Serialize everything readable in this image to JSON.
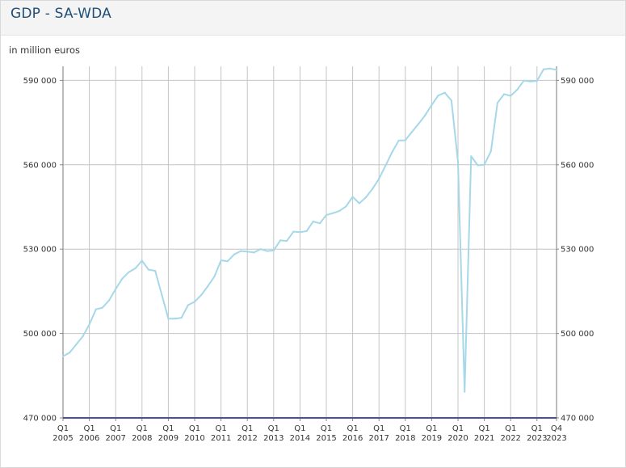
{
  "header": {
    "title": "GDP - SA-WDA"
  },
  "unit_label": "in million euros",
  "colors": {
    "line": "#a6d8ea",
    "grid": "#c4c4c4",
    "axis": "#4b4f8a",
    "title": "#1f4e79"
  },
  "chart_data": {
    "type": "line",
    "title": "GDP - SA-WDA",
    "ylabel": "in million euros",
    "xlabel": "",
    "ylim": [
      470000,
      595000
    ],
    "yticks": [
      470000,
      500000,
      530000,
      560000,
      590000
    ],
    "ytick_labels": [
      "470 000",
      "500 000",
      "530 000",
      "560 000",
      "590 000"
    ],
    "y_axis_right_mirrored": true,
    "grid": true,
    "x_tick_labels": [
      {
        "q": "Q1",
        "year": "2005"
      },
      {
        "q": "Q1",
        "year": "2006"
      },
      {
        "q": "Q1",
        "year": "2007"
      },
      {
        "q": "Q1",
        "year": "2008"
      },
      {
        "q": "Q1",
        "year": "2009"
      },
      {
        "q": "Q1",
        "year": "2010"
      },
      {
        "q": "Q1",
        "year": "2011"
      },
      {
        "q": "Q1",
        "year": "2012"
      },
      {
        "q": "Q1",
        "year": "2013"
      },
      {
        "q": "Q1",
        "year": "2014"
      },
      {
        "q": "Q1",
        "year": "2015"
      },
      {
        "q": "Q1",
        "year": "2016"
      },
      {
        "q": "Q1",
        "year": "2017"
      },
      {
        "q": "Q1",
        "year": "2018"
      },
      {
        "q": "Q1",
        "year": "2019"
      },
      {
        "q": "Q1",
        "year": "2020"
      },
      {
        "q": "Q1",
        "year": "2021"
      },
      {
        "q": "Q1",
        "year": "2022"
      },
      {
        "q": "Q1",
        "year": "2023"
      },
      {
        "q": "Q4",
        "year": "2023"
      }
    ],
    "series": [
      {
        "x": [
          "2005-Q1",
          "2005-Q2",
          "2005-Q3",
          "2005-Q4",
          "2006-Q1",
          "2006-Q2",
          "2006-Q3",
          "2006-Q4",
          "2007-Q1",
          "2007-Q2",
          "2007-Q3",
          "2007-Q4",
          "2008-Q1",
          "2008-Q2",
          "2008-Q3",
          "2008-Q4",
          "2009-Q1",
          "2009-Q2",
          "2009-Q3",
          "2009-Q4",
          "2010-Q1",
          "2010-Q2",
          "2010-Q3",
          "2010-Q4",
          "2011-Q1",
          "2011-Q2",
          "2011-Q3",
          "2011-Q4",
          "2012-Q1",
          "2012-Q2",
          "2012-Q3",
          "2012-Q4",
          "2013-Q1",
          "2013-Q2",
          "2013-Q3",
          "2013-Q4",
          "2014-Q1",
          "2014-Q2",
          "2014-Q3",
          "2014-Q4",
          "2015-Q1",
          "2015-Q2",
          "2015-Q3",
          "2015-Q4",
          "2016-Q1",
          "2016-Q2",
          "2016-Q3",
          "2016-Q4",
          "2017-Q1",
          "2017-Q2",
          "2017-Q3",
          "2017-Q4",
          "2018-Q1",
          "2018-Q2",
          "2018-Q3",
          "2018-Q4",
          "2019-Q1",
          "2019-Q2",
          "2019-Q3",
          "2019-Q4",
          "2020-Q1",
          "2020-Q2",
          "2020-Q3",
          "2020-Q4",
          "2021-Q1",
          "2021-Q2",
          "2021-Q3",
          "2021-Q4",
          "2022-Q1",
          "2022-Q2",
          "2022-Q3",
          "2022-Q4",
          "2023-Q1",
          "2023-Q2",
          "2023-Q3",
          "2023-Q4"
        ],
        "values": [
          491900,
          493200,
          496100,
          499000,
          503200,
          508600,
          509200,
          511800,
          515800,
          519500,
          521800,
          523200,
          525900,
          522700,
          522300,
          513800,
          505300,
          505300,
          505600,
          510100,
          511300,
          513700,
          516800,
          520300,
          526000,
          525700,
          528100,
          529300,
          529100,
          528800,
          530000,
          529300,
          529500,
          533100,
          532900,
          536200,
          536000,
          536400,
          539800,
          539200,
          542100,
          542800,
          543600,
          545200,
          548600,
          546300,
          548400,
          551400,
          555000,
          559700,
          564500,
          568600,
          568700,
          571700,
          574500,
          577600,
          581200,
          584600,
          585600,
          582800,
          561000,
          479300,
          563000,
          559800,
          560000,
          564800,
          582000,
          585100,
          584500,
          586700,
          589900,
          589600,
          589800,
          593900,
          594200,
          593700
        ]
      }
    ]
  }
}
